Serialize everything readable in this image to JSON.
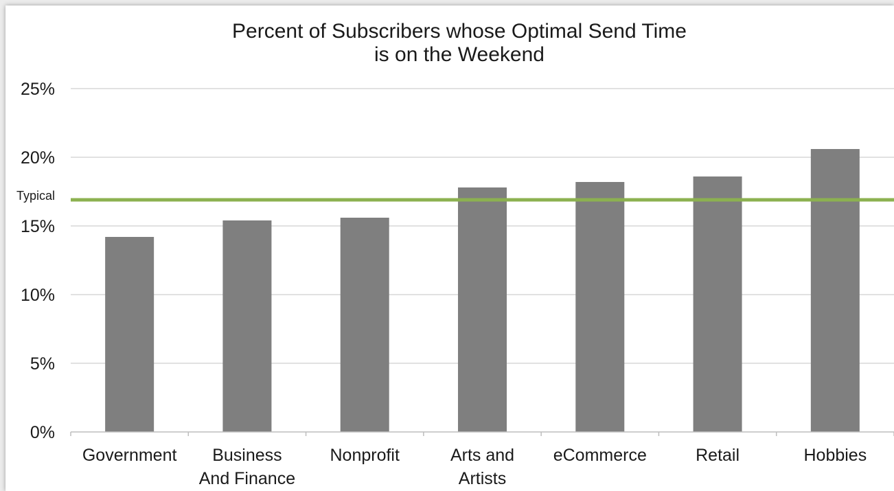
{
  "chart_data": {
    "type": "bar",
    "title_lines": [
      "Percent of Subscribers whose Optimal Send Time",
      "is on the Weekend"
    ],
    "categories": [
      [
        "Government"
      ],
      [
        "Business",
        "And Finance"
      ],
      [
        "Nonprofit"
      ],
      [
        "Arts and",
        "Artists"
      ],
      [
        "eCommerce"
      ],
      [
        "Retail"
      ],
      [
        "Hobbies"
      ]
    ],
    "values": [
      14.2,
      15.4,
      15.6,
      17.8,
      18.2,
      18.6,
      20.6
    ],
    "ylim": [
      0,
      25
    ],
    "y_ticks": [
      "0%",
      "5%",
      "10%",
      "15%",
      "20%",
      "25%"
    ],
    "y_tick_values": [
      0,
      5,
      10,
      15,
      20,
      25
    ],
    "grid": true,
    "reference_line": {
      "label": "Typical",
      "value": 16.9,
      "color": "#8cb150"
    },
    "bar_color": "#7f7f7f"
  }
}
